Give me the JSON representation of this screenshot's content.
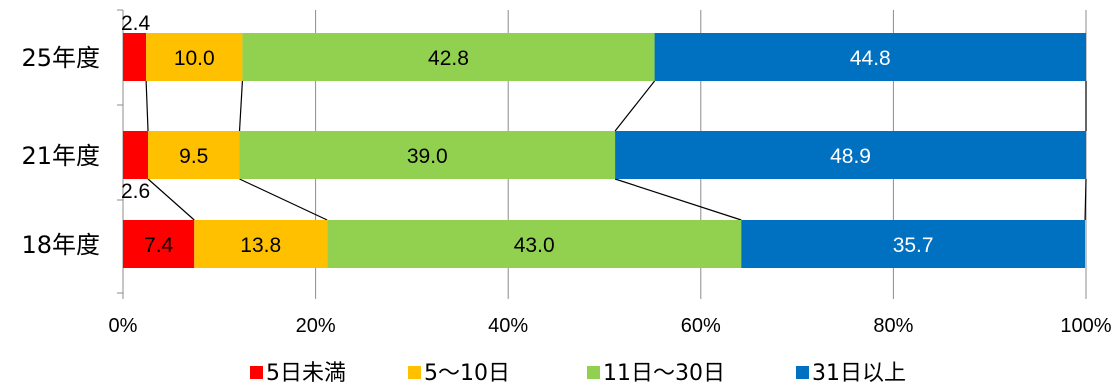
{
  "chart_data": {
    "type": "bar",
    "orientation": "horizontal",
    "stacked": "percent",
    "categories": [
      "25年度",
      "21年度",
      "18年度"
    ],
    "series": [
      {
        "name": "5日未満",
        "values": [
          2.4,
          2.6,
          7.4
        ],
        "color": "#ff0000",
        "label_color": "#000000"
      },
      {
        "name": "5～10日",
        "values": [
          10.0,
          9.5,
          13.8
        ],
        "color": "#ffc000",
        "label_color": "#000000"
      },
      {
        "name": "11日～30日",
        "values": [
          42.8,
          39.0,
          43.0
        ],
        "color": "#92d050",
        "label_color": "#000000"
      },
      {
        "name": "31日以上",
        "values": [
          44.8,
          48.9,
          35.7
        ],
        "color": "#0070c0",
        "label_color": "#ffffff"
      }
    ],
    "data_labels": [
      [
        "2.4",
        "10.0",
        "42.8",
        "44.8"
      ],
      [
        "2.6",
        "9.5",
        "39.0",
        "48.9"
      ],
      [
        "7.4",
        "13.8",
        "43.0",
        "35.7"
      ]
    ],
    "xlim": [
      0,
      100
    ],
    "xticks": [
      0,
      20,
      40,
      60,
      80,
      100
    ],
    "xtick_labels": [
      "0%",
      "20%",
      "40%",
      "60%",
      "80%",
      "100%"
    ],
    "grid": "vertical",
    "series_lines": true,
    "legend_position": "bottom"
  }
}
